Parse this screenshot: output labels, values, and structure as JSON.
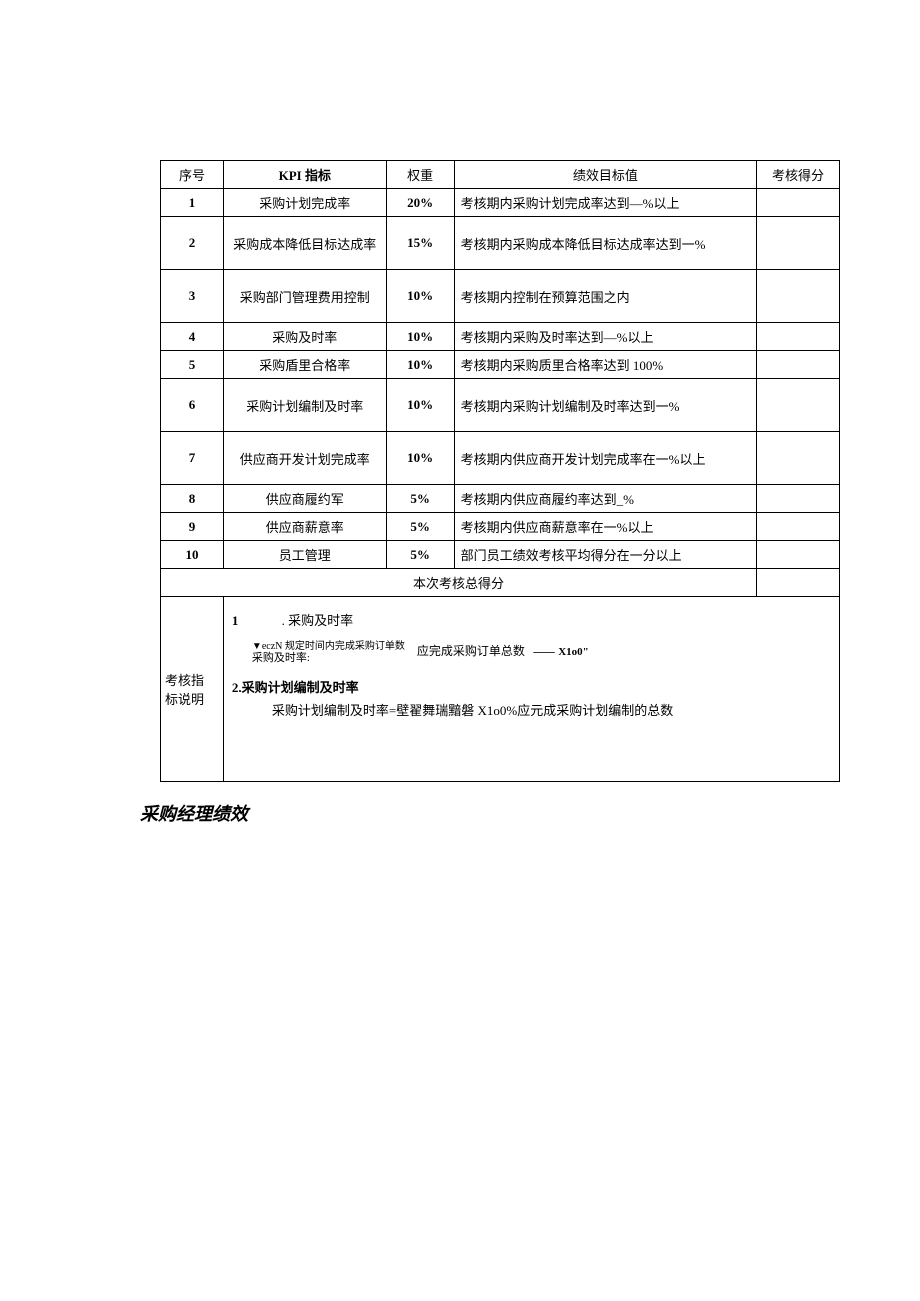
{
  "headers": {
    "seq": "序号",
    "kpi": "KPI 指标",
    "weight": "权重",
    "target": "绩效目标值",
    "score": "考核得分"
  },
  "rows": [
    {
      "seq": "1",
      "kpi": "采购计划完成率",
      "weight": "20%",
      "target": "考核期内采购计划完成率达到—%以上",
      "tall": false
    },
    {
      "seq": "2",
      "kpi": "采购成本降低目标达成率",
      "weight": "15%",
      "target": "考核期内采购成本降低目标达成率达到一%",
      "tall": true
    },
    {
      "seq": "3",
      "kpi": "采购部门管理费用控制",
      "weight": "10%",
      "target": "考核期内控制在预算范围之内",
      "tall": true
    },
    {
      "seq": "4",
      "kpi": "采购及时率",
      "weight": "10%",
      "target": "考核期内采购及时率达到—%以上",
      "tall": false
    },
    {
      "seq": "5",
      "kpi": "采购盾里合格率",
      "weight": "10%",
      "target": "考核期内采购质里合格率达到 100%",
      "tall": false
    },
    {
      "seq": "6",
      "kpi": "采购计划编制及时率",
      "weight": "10%",
      "target": "考核期内采购计划编制及时率达到一%",
      "tall": true
    },
    {
      "seq": "7",
      "kpi": "供应商开发计划完成率",
      "weight": "10%",
      "target": "考核期内供应商开发计划完成率在一%以上",
      "tall": true
    },
    {
      "seq": "8",
      "kpi": "供应商履约军",
      "weight": "5%",
      "target": "考核期内供应商履约率达到_%",
      "tall": false
    },
    {
      "seq": "9",
      "kpi": "供应商薪意率",
      "weight": "5%",
      "target": "考核期内供应商薪意率在一%以上",
      "tall": false
    },
    {
      "seq": "10",
      "kpi": "员工管理",
      "weight": "5%",
      "target": "部门员工绩效考核平均得分在一分以上",
      "tall": false
    }
  ],
  "total_label": "本次考核总得分",
  "desc_label_1": "考核指",
  "desc_label_2": "标说明",
  "desc": {
    "item1_num": "1",
    "item1_title": ". 采购及时率",
    "formula_top": "▼eczN 规定时间内完成采购订单数",
    "formula_lead": "采购及时率:",
    "formula_num": "时间内完成采购订单数",
    "formula_den": "应完成采购订单总数",
    "formula_dash": "--------",
    "formula_tail": "X1o0\"",
    "item2_head": "2.采购计划编制及时率",
    "item2_body": "采购计划编制及时率=壁翟舞瑞黯磐 X1o0%应元成采购计划编制的总数"
  },
  "page_title": "采购经理绩效"
}
